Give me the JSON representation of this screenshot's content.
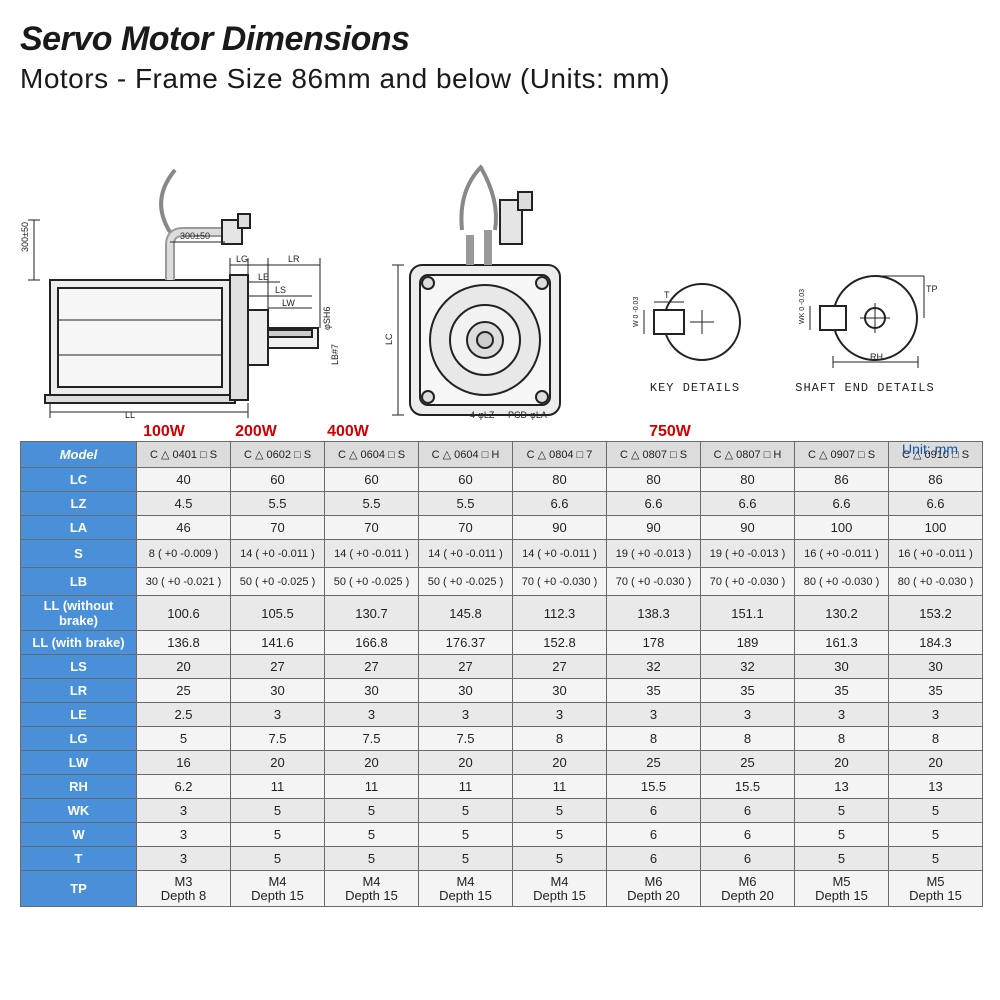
{
  "header": {
    "title": "Servo Motor Dimensions",
    "subtitle": "Motors - Frame Size 86mm and below (Units: mm)"
  },
  "diagrams": {
    "side_cable_v": "300±50",
    "side_cable_h": "300±50",
    "side_dims": {
      "LL": "LL",
      "LG": "LG",
      "LR": "LR",
      "LE": "LE",
      "LS": "LS",
      "LW": "LW",
      "SH": "φSH6",
      "LB": "LB#7"
    },
    "front_dims": {
      "LC": "LC",
      "LZ": "4-φLZ",
      "PCD": "PCD-φLA"
    },
    "key_caption": "KEY DETAILS",
    "key_dims": {
      "T": "T",
      "W": "W 0 -0.03"
    },
    "shaft_caption": "SHAFT END DETAILS",
    "shaft_dims": {
      "TP": "TP",
      "RH": "RH",
      "WK": "WK 0 -0.03"
    }
  },
  "unit_text": "Unit: mm",
  "wattage": {
    "w100": "100W",
    "w200": "200W",
    "w400": "400W",
    "w750": "750W"
  },
  "table": {
    "col_width_header": 116,
    "col_width_data": 94,
    "header_bg": "#4a90d9",
    "header_fg": "#ffffff",
    "cell_bg": "#e9e9e9",
    "border": "#6a6a6a",
    "rows": [
      {
        "label": "Model",
        "cells": [
          "C △ 0401 □ S",
          "C △ 0602 □ S",
          "C △ 0604 □ S",
          "C △ 0604 □ H",
          "C △ 0804 □ 7",
          "C △ 0807 □ S",
          "C △ 0807 □ H",
          "C △ 0907 □ S",
          "C △ 0910 □ S"
        ],
        "class": "model-row"
      },
      {
        "label": "LC",
        "cells": [
          "40",
          "60",
          "60",
          "60",
          "80",
          "80",
          "80",
          "86",
          "86"
        ]
      },
      {
        "label": "LZ",
        "cells": [
          "4.5",
          "5.5",
          "5.5",
          "5.5",
          "6.6",
          "6.6",
          "6.6",
          "6.6",
          "6.6"
        ]
      },
      {
        "label": "LA",
        "cells": [
          "46",
          "70",
          "70",
          "70",
          "90",
          "90",
          "90",
          "100",
          "100"
        ]
      },
      {
        "label": "S",
        "cells": [
          "8 ( +0 -0.009 )",
          "14 ( +0 -0.011 )",
          "14 ( +0 -0.011 )",
          "14 ( +0 -0.011 )",
          "14 ( +0 -0.011 )",
          "19 ( +0 -0.013 )",
          "19 ( +0 -0.013 )",
          "16 ( +0 -0.011 )",
          "16 ( +0 -0.011 )"
        ],
        "class": "tol"
      },
      {
        "label": "LB",
        "cells": [
          "30 ( +0 -0.021 )",
          "50 ( +0 -0.025 )",
          "50 ( +0 -0.025 )",
          "50 ( +0 -0.025 )",
          "70 ( +0 -0.030 )",
          "70 ( +0 -0.030 )",
          "70 ( +0 -0.030 )",
          "80 ( +0 -0.030 )",
          "80 ( +0 -0.030 )"
        ],
        "class": "tol"
      },
      {
        "label": "LL (without brake)",
        "cells": [
          "100.6",
          "105.5",
          "130.7",
          "145.8",
          "112.3",
          "138.3",
          "151.1",
          "130.2",
          "153.2"
        ]
      },
      {
        "label": "LL (with brake)",
        "cells": [
          "136.8",
          "141.6",
          "166.8",
          "176.37",
          "152.8",
          "178",
          "189",
          "161.3",
          "184.3"
        ]
      },
      {
        "label": "LS",
        "cells": [
          "20",
          "27",
          "27",
          "27",
          "27",
          "32",
          "32",
          "30",
          "30"
        ]
      },
      {
        "label": "LR",
        "cells": [
          "25",
          "30",
          "30",
          "30",
          "30",
          "35",
          "35",
          "35",
          "35"
        ]
      },
      {
        "label": "LE",
        "cells": [
          "2.5",
          "3",
          "3",
          "3",
          "3",
          "3",
          "3",
          "3",
          "3"
        ]
      },
      {
        "label": "LG",
        "cells": [
          "5",
          "7.5",
          "7.5",
          "7.5",
          "8",
          "8",
          "8",
          "8",
          "8"
        ]
      },
      {
        "label": "LW",
        "cells": [
          "16",
          "20",
          "20",
          "20",
          "20",
          "25",
          "25",
          "20",
          "20"
        ]
      },
      {
        "label": "RH",
        "cells": [
          "6.2",
          "11",
          "11",
          "11",
          "11",
          "15.5",
          "15.5",
          "13",
          "13"
        ]
      },
      {
        "label": "WK",
        "cells": [
          "3",
          "5",
          "5",
          "5",
          "5",
          "6",
          "6",
          "5",
          "5"
        ]
      },
      {
        "label": "W",
        "cells": [
          "3",
          "5",
          "5",
          "5",
          "5",
          "6",
          "6",
          "5",
          "5"
        ]
      },
      {
        "label": "T",
        "cells": [
          "3",
          "5",
          "5",
          "5",
          "5",
          "6",
          "6",
          "5",
          "5"
        ]
      },
      {
        "label": "TP",
        "cells": [
          "M3\nDepth 8",
          "M4\nDepth 15",
          "M4\nDepth 15",
          "M4\nDepth 15",
          "M4\nDepth 15",
          "M6\nDepth 20",
          "M6\nDepth 20",
          "M5\nDepth 15",
          "M5\nDepth 15"
        ],
        "class": "tp-row"
      }
    ]
  }
}
